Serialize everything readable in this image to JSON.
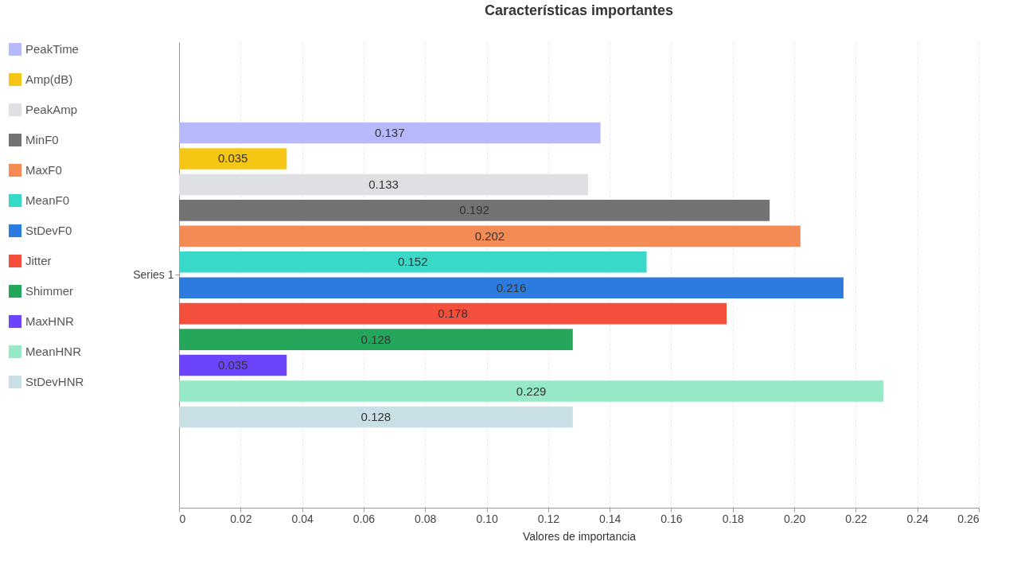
{
  "chart_data": {
    "type": "bar",
    "title": "Características importantes",
    "xlabel": "Valores de importancia",
    "orientation": "horizontal",
    "categories": [
      "Series 1"
    ],
    "series": [
      {
        "name": "PeakTime",
        "color": "#b8b9fc",
        "values": [
          0.137
        ]
      },
      {
        "name": "Amp(dB)",
        "color": "#f5c614",
        "values": [
          0.035
        ]
      },
      {
        "name": "PeakAmp",
        "color": "#dfe0e4",
        "values": [
          0.133
        ]
      },
      {
        "name": "MinF0",
        "color": "#737373",
        "values": [
          0.192
        ]
      },
      {
        "name": "MaxF0",
        "color": "#f48b55",
        "values": [
          0.202
        ]
      },
      {
        "name": "MeanF0",
        "color": "#38d9c9",
        "values": [
          0.152
        ]
      },
      {
        "name": "StDevF0",
        "color": "#2e7be0",
        "values": [
          0.216
        ]
      },
      {
        "name": "Jitter",
        "color": "#f44f3d",
        "values": [
          0.178
        ]
      },
      {
        "name": "Shimmer",
        "color": "#24a65b",
        "values": [
          0.128
        ]
      },
      {
        "name": "MaxHNR",
        "color": "#6b44fb",
        "values": [
          0.035
        ]
      },
      {
        "name": "MeanHNR",
        "color": "#96e9c6",
        "values": [
          0.229
        ]
      },
      {
        "name": "StDevHNR",
        "color": "#c8dfe5",
        "values": [
          0.128
        ]
      }
    ],
    "xlim": [
      0,
      0.26
    ],
    "xticks": [
      0,
      0.02,
      0.04,
      0.06,
      0.08,
      {
        "value": 0.1,
        "label": "0.10"
      },
      0.12,
      0.14,
      0.16,
      0.18,
      {
        "value": 0.2,
        "label": "0.20"
      },
      0.22,
      0.24,
      0.26
    ],
    "data_labels": true,
    "grid": "x",
    "legend": "left"
  }
}
